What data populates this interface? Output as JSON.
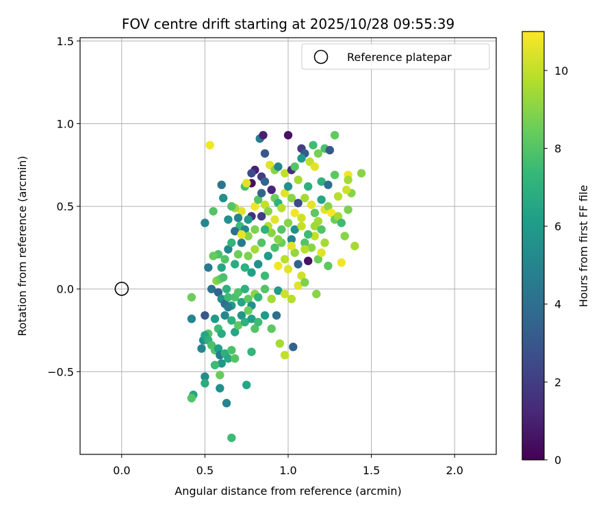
{
  "chart_data": {
    "type": "scatter",
    "title": "FOV centre drift starting at 2025/10/28 09:55:39",
    "xlabel": "Angular distance from reference (arcmin)",
    "ylabel": "Rotation from reference (arcmin)",
    "xlim": [
      -0.25,
      2.25
    ],
    "ylim": [
      -1.0,
      1.52
    ],
    "x_ticks": [
      0.0,
      0.5,
      1.0,
      1.5,
      2.0
    ],
    "x_tick_labels": [
      "0.0",
      "0.5",
      "1.0",
      "1.5",
      "2.0"
    ],
    "y_ticks": [
      -0.5,
      0.0,
      0.5,
      1.0,
      1.5
    ],
    "y_tick_labels": [
      "−0.5",
      "0.0",
      "0.5",
      "1.0",
      "1.5"
    ],
    "grid": true,
    "legend": {
      "position": "top-right",
      "entries": [
        "Reference platepar"
      ]
    },
    "reference_point": {
      "x": 0.0,
      "y": 0.0,
      "label": "Reference platepar"
    },
    "colorbar": {
      "label": "Hours from first FF file",
      "range": [
        0,
        11
      ],
      "ticks": [
        0,
        2,
        4,
        6,
        8,
        10
      ],
      "tick_labels": [
        "0",
        "2",
        "4",
        "6",
        "8",
        "10"
      ],
      "colormap": "viridis"
    },
    "points_x_y_hours": [
      [
        0.53,
        0.87,
        10.8
      ],
      [
        0.83,
        0.91,
        4.5
      ],
      [
        0.85,
        0.93,
        1.0
      ],
      [
        1.0,
        0.93,
        0.5
      ],
      [
        1.28,
        0.93,
        8.3
      ],
      [
        0.86,
        0.82,
        3.0
      ],
      [
        1.08,
        0.85,
        2.0
      ],
      [
        1.1,
        0.82,
        3.2
      ],
      [
        1.15,
        0.87,
        7.6
      ],
      [
        1.22,
        0.85,
        7.8
      ],
      [
        1.25,
        0.84,
        3.0
      ],
      [
        0.55,
        0.47,
        8.0
      ],
      [
        0.6,
        0.63,
        4.3
      ],
      [
        0.61,
        0.55,
        5.6
      ],
      [
        0.5,
        0.4,
        5.2
      ],
      [
        0.74,
        0.62,
        7.8
      ],
      [
        0.78,
        0.64,
        0.5
      ],
      [
        0.8,
        0.72,
        1.0
      ],
      [
        0.78,
        0.7,
        2.5
      ],
      [
        0.84,
        0.68,
        2.0
      ],
      [
        0.86,
        0.65,
        3.5
      ],
      [
        0.89,
        0.75,
        10.5
      ],
      [
        0.92,
        0.72,
        9.0
      ],
      [
        0.94,
        0.74,
        5.0
      ],
      [
        0.98,
        0.7,
        10.0
      ],
      [
        1.02,
        0.72,
        1.5
      ],
      [
        1.04,
        0.74,
        8.0
      ],
      [
        1.06,
        0.66,
        9.5
      ],
      [
        1.08,
        0.79,
        6.0
      ],
      [
        1.13,
        0.77,
        10.0
      ],
      [
        1.16,
        0.74,
        10.5
      ],
      [
        1.18,
        0.82,
        8.7
      ],
      [
        1.2,
        0.65,
        7.0
      ],
      [
        1.24,
        0.63,
        4.0
      ],
      [
        1.28,
        0.69,
        8.2
      ],
      [
        1.36,
        0.69,
        10.8
      ],
      [
        1.44,
        0.7,
        9.0
      ],
      [
        1.36,
        0.66,
        9.5
      ],
      [
        1.38,
        0.58,
        9.0
      ],
      [
        1.35,
        0.6,
        10.2
      ],
      [
        1.3,
        0.56,
        9.8
      ],
      [
        0.75,
        0.64,
        10.5
      ],
      [
        0.72,
        0.47,
        10.5
      ],
      [
        0.68,
        0.49,
        9.5
      ],
      [
        0.7,
        0.43,
        5.0
      ],
      [
        0.66,
        0.5,
        8.0
      ],
      [
        0.71,
        0.38,
        7.5
      ],
      [
        0.74,
        0.36,
        5.2
      ],
      [
        0.76,
        0.32,
        9.0
      ],
      [
        0.78,
        0.44,
        1.5
      ],
      [
        0.8,
        0.5,
        10.8
      ],
      [
        0.82,
        0.54,
        8.0
      ],
      [
        0.84,
        0.58,
        3.5
      ],
      [
        0.86,
        0.51,
        10.0
      ],
      [
        0.88,
        0.47,
        9.0
      ],
      [
        0.9,
        0.6,
        1.2
      ],
      [
        0.92,
        0.55,
        8.5
      ],
      [
        0.94,
        0.52,
        7.0
      ],
      [
        0.96,
        0.49,
        9.8
      ],
      [
        0.98,
        0.58,
        10.5
      ],
      [
        1.0,
        0.62,
        5.5
      ],
      [
        1.02,
        0.55,
        9.0
      ],
      [
        1.04,
        0.46,
        10.8
      ],
      [
        1.06,
        0.52,
        2.5
      ],
      [
        1.08,
        0.43,
        10.2
      ],
      [
        1.1,
        0.55,
        9.5
      ],
      [
        1.12,
        0.62,
        7.0
      ],
      [
        1.14,
        0.51,
        10.6
      ],
      [
        1.16,
        0.46,
        8.2
      ],
      [
        1.18,
        0.41,
        9.5
      ],
      [
        1.2,
        0.54,
        6.5
      ],
      [
        1.22,
        0.48,
        10.5
      ],
      [
        1.24,
        0.5,
        9.0
      ],
      [
        1.26,
        0.46,
        10.9
      ],
      [
        1.28,
        0.42,
        8.5
      ],
      [
        1.3,
        0.44,
        9.5
      ],
      [
        1.32,
        0.4,
        7.5
      ],
      [
        1.34,
        0.32,
        9.0
      ],
      [
        1.36,
        0.48,
        8.8
      ],
      [
        1.4,
        0.26,
        9.5
      ],
      [
        0.58,
        0.21,
        7.8
      ],
      [
        0.6,
        0.13,
        6.5
      ],
      [
        0.62,
        0.18,
        8.0
      ],
      [
        0.64,
        0.24,
        5.0
      ],
      [
        0.66,
        0.28,
        7.2
      ],
      [
        0.68,
        0.15,
        6.8
      ],
      [
        0.7,
        0.21,
        8.5
      ],
      [
        0.72,
        0.28,
        4.5
      ],
      [
        0.74,
        0.13,
        7.0
      ],
      [
        0.76,
        0.2,
        8.8
      ],
      [
        0.78,
        0.1,
        6.2
      ],
      [
        0.8,
        0.24,
        9.5
      ],
      [
        0.82,
        0.15,
        5.5
      ],
      [
        0.84,
        0.28,
        8.0
      ],
      [
        0.86,
        0.08,
        7.5
      ],
      [
        0.88,
        0.2,
        6.0
      ],
      [
        0.9,
        0.34,
        9.0
      ],
      [
        0.92,
        0.25,
        7.8
      ],
      [
        0.94,
        0.14,
        10.8
      ],
      [
        0.96,
        0.28,
        8.5
      ],
      [
        0.98,
        0.18,
        9.8
      ],
      [
        1.0,
        0.12,
        10.5
      ],
      [
        1.02,
        0.3,
        5.0
      ],
      [
        1.04,
        0.22,
        9.2
      ],
      [
        1.06,
        0.15,
        3.5
      ],
      [
        1.08,
        0.08,
        10.2
      ],
      [
        1.1,
        0.28,
        8.0
      ],
      [
        1.12,
        0.17,
        0.5
      ],
      [
        1.14,
        0.25,
        9.0
      ],
      [
        1.16,
        0.32,
        10.0
      ],
      [
        1.18,
        0.18,
        8.5
      ],
      [
        1.2,
        0.22,
        10.5
      ],
      [
        1.22,
        0.28,
        9.5
      ],
      [
        1.24,
        0.14,
        8.2
      ],
      [
        1.32,
        0.16,
        10.8
      ],
      [
        0.55,
        0.2,
        8.4
      ],
      [
        0.57,
        0.05,
        9.0
      ],
      [
        0.59,
        0.06,
        8.5
      ],
      [
        0.61,
        0.07,
        7.8
      ],
      [
        0.63,
        0.0,
        7.0
      ],
      [
        0.52,
        0.13,
        4.5
      ],
      [
        0.54,
        0.0,
        4.2
      ],
      [
        0.58,
        -0.02,
        3.5
      ],
      [
        0.6,
        -0.06,
        5.5
      ],
      [
        0.62,
        -0.09,
        4.0
      ],
      [
        0.64,
        -0.05,
        7.5
      ],
      [
        0.66,
        -0.1,
        6.0
      ],
      [
        0.68,
        -0.05,
        7.8
      ],
      [
        0.7,
        -0.02,
        8.0
      ],
      [
        0.72,
        -0.08,
        6.5
      ],
      [
        0.74,
        0.0,
        7.0
      ],
      [
        0.76,
        -0.06,
        8.2
      ],
      [
        0.78,
        -0.1,
        5.5
      ],
      [
        0.8,
        -0.03,
        9.0
      ],
      [
        0.82,
        -0.05,
        7.2
      ],
      [
        0.86,
        0.0,
        8.0
      ],
      [
        0.9,
        -0.06,
        9.5
      ],
      [
        0.94,
        -0.01,
        6.0
      ],
      [
        0.98,
        -0.03,
        10.2
      ],
      [
        1.02,
        -0.06,
        9.8
      ],
      [
        1.06,
        0.02,
        10.5
      ],
      [
        1.1,
        0.04,
        8.8
      ],
      [
        1.17,
        -0.03,
        9.0
      ],
      [
        0.42,
        -0.05,
        8.5
      ],
      [
        0.42,
        -0.18,
        5.0
      ],
      [
        0.5,
        -0.16,
        3.0
      ],
      [
        0.52,
        -0.27,
        8.0
      ],
      [
        0.56,
        -0.18,
        6.0
      ],
      [
        0.58,
        -0.24,
        7.5
      ],
      [
        0.6,
        -0.27,
        6.8
      ],
      [
        0.62,
        -0.16,
        5.2
      ],
      [
        0.64,
        -0.11,
        4.5
      ],
      [
        0.66,
        -0.19,
        7.0
      ],
      [
        0.68,
        -0.26,
        6.5
      ],
      [
        0.7,
        -0.22,
        8.2
      ],
      [
        0.72,
        -0.16,
        5.8
      ],
      [
        0.74,
        -0.2,
        7.0
      ],
      [
        0.76,
        -0.13,
        8.5
      ],
      [
        0.78,
        -0.18,
        6.2
      ],
      [
        0.8,
        -0.24,
        8.0
      ],
      [
        0.82,
        -0.2,
        7.5
      ],
      [
        0.86,
        -0.16,
        6.0
      ],
      [
        0.9,
        -0.24,
        8.2
      ],
      [
        0.93,
        -0.16,
        4.0
      ],
      [
        0.95,
        -0.33,
        9.5
      ],
      [
        0.98,
        -0.4,
        10.0
      ],
      [
        1.03,
        -0.35,
        3.5
      ],
      [
        0.48,
        -0.36,
        5.0
      ],
      [
        0.49,
        -0.31,
        5.5
      ],
      [
        0.5,
        -0.28,
        6.5
      ],
      [
        0.52,
        -0.31,
        7.0
      ],
      [
        0.54,
        -0.34,
        7.8
      ],
      [
        0.56,
        -0.37,
        8.0
      ],
      [
        0.58,
        -0.36,
        6.2
      ],
      [
        0.59,
        -0.4,
        4.5
      ],
      [
        0.6,
        -0.45,
        5.8
      ],
      [
        0.62,
        -0.39,
        7.0
      ],
      [
        0.64,
        -0.42,
        6.6
      ],
      [
        0.66,
        -0.37,
        7.8
      ],
      [
        0.68,
        -0.42,
        8.0
      ],
      [
        0.75,
        -0.58,
        6.5
      ],
      [
        0.78,
        -0.38,
        7.2
      ],
      [
        0.56,
        -0.46,
        7.5
      ],
      [
        0.5,
        -0.53,
        5.3
      ],
      [
        0.5,
        -0.57,
        6.8
      ],
      [
        0.59,
        -0.52,
        8.4
      ],
      [
        0.59,
        -0.6,
        5.5
      ],
      [
        0.43,
        -0.64,
        6.5
      ],
      [
        0.42,
        -0.66,
        8.0
      ],
      [
        0.63,
        -0.69,
        5.0
      ],
      [
        0.66,
        -0.9,
        7.5
      ],
      [
        0.64,
        0.42,
        5.5
      ],
      [
        0.68,
        0.35,
        4.0
      ],
      [
        0.72,
        0.33,
        10.6
      ],
      [
        0.76,
        0.42,
        6.0
      ],
      [
        0.8,
        0.36,
        8.8
      ],
      [
        0.84,
        0.44,
        2.0
      ],
      [
        0.88,
        0.38,
        9.8
      ],
      [
        0.92,
        0.42,
        10.5
      ],
      [
        0.96,
        0.36,
        8.0
      ],
      [
        1.0,
        0.4,
        9.0
      ],
      [
        1.04,
        0.36,
        5.5
      ],
      [
        1.08,
        0.38,
        10.0
      ],
      [
        1.12,
        0.33,
        7.5
      ],
      [
        1.16,
        0.38,
        9.4
      ],
      [
        1.2,
        0.36,
        8.0
      ],
      [
        0.86,
        0.36,
        7.0
      ],
      [
        0.94,
        0.3,
        9.0
      ],
      [
        1.02,
        0.26,
        10.5
      ],
      [
        1.1,
        0.24,
        9.8
      ]
    ]
  }
}
